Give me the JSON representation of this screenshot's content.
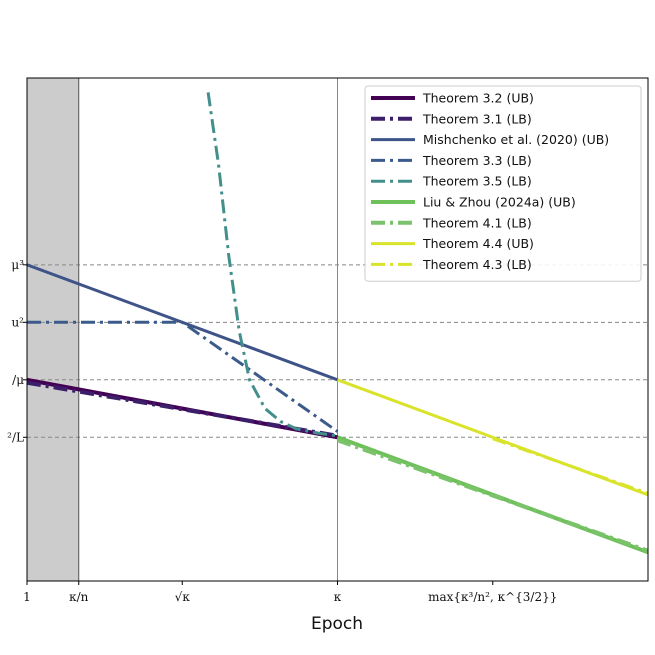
{
  "chart_data": {
    "type": "line",
    "title": "",
    "xlabel": "Epoch",
    "ylabel": "",
    "x_scale": "log",
    "y_scale": "log",
    "grid": "dashed horizontal reference lines at the y ticks",
    "legend_position": "top-right",
    "shaded_region": {
      "from": "1",
      "to": "κ/n",
      "color": "#cccccc"
    },
    "vertical_reference": "κ",
    "x_ticks": [
      {
        "label": "1",
        "x": 0
      },
      {
        "label": "κ/n",
        "x": 1
      },
      {
        "label": "√κ",
        "x": 3
      },
      {
        "label": "κ",
        "x": 6
      },
      {
        "label": "max{κ³/n², κ^{3/2}}",
        "x": 9
      }
    ],
    "xlim": [
      0,
      12
    ],
    "y_ticks": [
      {
        "label": "μ³",
        "y": 6
      },
      {
        "label": "u²",
        "y": 4
      },
      {
        "label": "/μ",
        "y": 2
      },
      {
        "label": "²/L",
        "y": 0
      }
    ],
    "ylim": [
      -5,
      12.5
    ],
    "series": [
      {
        "name": "Theorem 3.2 (UB)",
        "color": "#440154",
        "style": "solid",
        "width": 4,
        "x": [
          0,
          6
        ],
        "y": [
          2,
          0
        ]
      },
      {
        "name": "Theorem 3.1 (LB)",
        "color": "#3b1f6b",
        "style": "dashdot",
        "width": 4,
        "x": [
          0,
          6
        ],
        "y": [
          1.9,
          0.05
        ]
      },
      {
        "name": "Mishchenko et al. (2020) (UB)",
        "color": "#3e5488",
        "style": "solid",
        "width": 3,
        "x": [
          0,
          6
        ],
        "y": [
          6,
          2
        ]
      },
      {
        "name": "Theorem 3.3 (LB)",
        "color": "#3b5b8b",
        "style": "dashdot",
        "width": 3,
        "x": [
          0,
          3,
          6
        ],
        "y": [
          4,
          4,
          0.2
        ]
      },
      {
        "name": "Theorem 3.5 (LB)",
        "color": "#438f8c",
        "style": "dashdot",
        "width": 3,
        "x": [
          3.5,
          3.7,
          3.9,
          4.1,
          4.3,
          4.6,
          4.9,
          5.2,
          5.6,
          6.0
        ],
        "y": [
          12.0,
          9.5,
          6.3,
          3.7,
          2.0,
          1.0,
          0.55,
          0.3,
          0.15,
          0.05
        ]
      },
      {
        "name": "Liu & Zhou (2024a) (UB)",
        "color": "#6ec05a",
        "style": "solid",
        "width": 4,
        "x": [
          6,
          12
        ],
        "y": [
          0,
          -4
        ]
      },
      {
        "name": "Theorem 4.1 (LB)",
        "color": "#7ac36a",
        "style": "dashdot",
        "width": 4,
        "x": [
          6,
          12
        ],
        "y": [
          -0.1,
          -3.95
        ]
      },
      {
        "name": "Theorem 4.4 (UB)",
        "color": "#d9e32a",
        "style": "solid",
        "width": 3,
        "x": [
          6,
          12
        ],
        "y": [
          2,
          -2
        ]
      },
      {
        "name": "Theorem 4.3 (LB)",
        "color": "#d9e32a",
        "style": "dashdot",
        "width": 3,
        "x": [
          9,
          12
        ],
        "y": [
          -0.05,
          -1.95
        ]
      }
    ]
  }
}
